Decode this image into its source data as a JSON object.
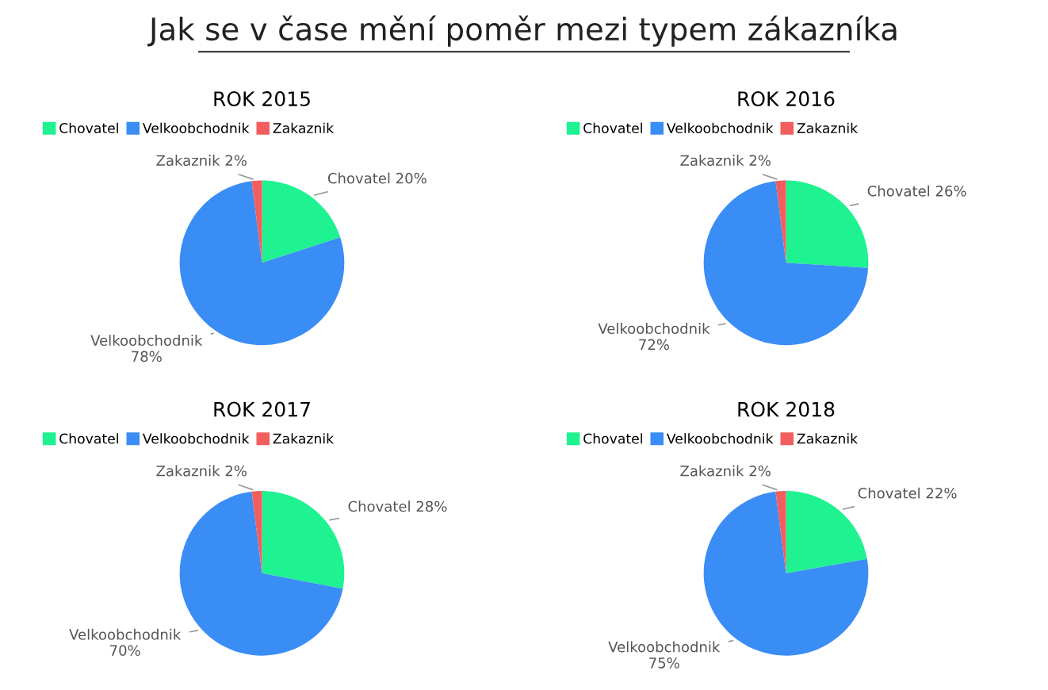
{
  "chart_data": [
    {
      "type": "pie",
      "title": "ROK 2015",
      "annotations": [
        "Jak se v čase mění poměr mezi typem zákazníka"
      ],
      "categories": [
        "Chovatel",
        "Velkoobchodnik",
        "Zakaznik"
      ],
      "values": [
        20,
        78,
        2
      ],
      "value_labels": [
        "20%",
        "78%",
        "2%"
      ],
      "colors": [
        "#1ef291",
        "#3a8df5",
        "#f25e5e"
      ],
      "legend": "top left"
    },
    {
      "type": "pie",
      "title": "ROK 2016",
      "categories": [
        "Chovatel",
        "Velkoobchodnik",
        "Zakaznik"
      ],
      "values": [
        26,
        72,
        2
      ],
      "value_labels": [
        "26%",
        "72%",
        "2%"
      ],
      "colors": [
        "#1ef291",
        "#3a8df5",
        "#f25e5e"
      ],
      "legend": "top left"
    },
    {
      "type": "pie",
      "title": "ROK 2017",
      "categories": [
        "Chovatel",
        "Velkoobchodnik",
        "Zakaznik"
      ],
      "values": [
        28,
        70,
        2
      ],
      "value_labels": [
        "28%",
        "70%",
        "2%"
      ],
      "colors": [
        "#1ef291",
        "#3a8df5",
        "#f25e5e"
      ],
      "legend": "top left"
    },
    {
      "type": "pie",
      "title": "ROK 2018",
      "categories": [
        "Chovatel",
        "Velkoobchodnik",
        "Zakaznik"
      ],
      "values": [
        22,
        75,
        2
      ],
      "value_labels": [
        "22%",
        "75%",
        "2%"
      ],
      "colors": [
        "#1ef291",
        "#3a8df5",
        "#f25e5e"
      ],
      "legend": "top left"
    }
  ]
}
